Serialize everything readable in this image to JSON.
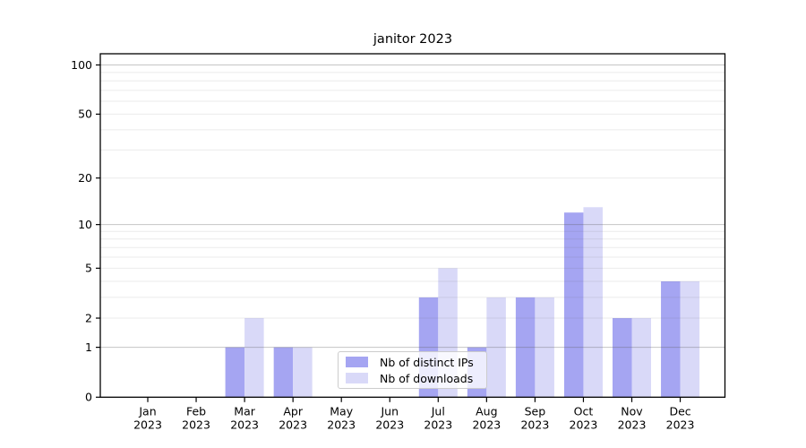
{
  "figure": {
    "background": "#ffffff"
  },
  "chart_data": {
    "type": "bar",
    "title": "janitor 2023",
    "categories": [
      [
        "Jan",
        "2023"
      ],
      [
        "Feb",
        "2023"
      ],
      [
        "Mar",
        "2023"
      ],
      [
        "Apr",
        "2023"
      ],
      [
        "May",
        "2023"
      ],
      [
        "Jun",
        "2023"
      ],
      [
        "Jul",
        "2023"
      ],
      [
        "Aug",
        "2023"
      ],
      [
        "Sep",
        "2023"
      ],
      [
        "Oct",
        "2023"
      ],
      [
        "Nov",
        "2023"
      ],
      [
        "Dec",
        "2023"
      ]
    ],
    "series": [
      {
        "name": "Nb of distinct IPs",
        "color": "#a5a5f2",
        "values": [
          0,
          0,
          1,
          1,
          0,
          0,
          3,
          1,
          3,
          12,
          2,
          4
        ]
      },
      {
        "name": "Nb of downloads",
        "color": "#d9d9f8",
        "values": [
          0,
          0,
          2,
          1,
          0,
          0,
          5,
          3,
          3,
          13,
          2,
          4
        ]
      }
    ],
    "y_axis": {
      "scale": "log10(1+x)",
      "tick_labels": [
        0,
        1,
        2,
        5,
        10,
        20,
        50,
        100
      ],
      "major_gridlines": [
        1,
        10,
        100
      ],
      "minor_gridlines": [
        2,
        3,
        4,
        5,
        6,
        7,
        8,
        9,
        20,
        30,
        40,
        50,
        60,
        70,
        80,
        90
      ],
      "ymax": 117
    },
    "legend": {
      "position": "lower-center-inside"
    }
  }
}
